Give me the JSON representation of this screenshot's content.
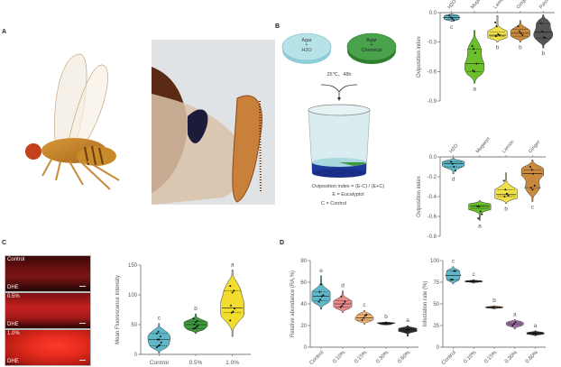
{
  "panels": {
    "a": {
      "label": "A"
    },
    "b": {
      "label": "B"
    },
    "c": {
      "label": "C"
    },
    "d": {
      "label": "D"
    }
  },
  "schematic": {
    "dish_left_line1": "Agar",
    "dish_left_line2": "+",
    "dish_left_line3": "H2O",
    "dish_right_line1": "Agar",
    "dish_right_line2": "+",
    "dish_right_line3": "Chemical",
    "condition": "25℃、48h",
    "formula": "Oviposition index = (E-C) / (E+C)",
    "legend_e": "E =  Eucalyptol",
    "legend_c": "C = Control",
    "colors": {
      "h2o_dish": "#a8dde3",
      "chem_dish": "#3f9a3f",
      "cup_base": "#1f3a9a"
    }
  },
  "fluorescence": {
    "images": [
      {
        "label": "Control",
        "stain": "DHE"
      },
      {
        "label": "0.5%",
        "stain": "DHE"
      },
      {
        "label": "1.0%",
        "stain": "DHE"
      }
    ]
  },
  "chart_data": [
    {
      "id": "b1",
      "type": "violin",
      "ylabel": "Oviposition index",
      "ylim": [
        -0.9,
        0.0
      ],
      "yticks": [
        0.0,
        -0.3,
        -0.6,
        -0.9
      ],
      "ytick_labels": [
        "0.0",
        "-0.3",
        "-0.6",
        "-0.9"
      ],
      "xaxis_position": "top",
      "categories": [
        "H2O",
        "Mugwort",
        "Lemon",
        "Ginger",
        "Patchouli"
      ],
      "colors": [
        "#5fb8c9",
        "#6bbf2a",
        "#f0e04a",
        "#c98a3e",
        "#555555"
      ],
      "medians": [
        -0.05,
        -0.52,
        -0.23,
        -0.21,
        -0.2
      ],
      "quartiles": [
        [
          -0.07,
          -0.03
        ],
        [
          -0.6,
          -0.37
        ],
        [
          -0.24,
          -0.2
        ],
        [
          -0.24,
          -0.17
        ],
        [
          -0.26,
          -0.11
        ]
      ],
      "ranges": [
        [
          -0.09,
          -0.01
        ],
        [
          -0.72,
          -0.18
        ],
        [
          -0.3,
          -0.03
        ],
        [
          -0.3,
          -0.08
        ],
        [
          -0.36,
          -0.02
        ]
      ],
      "points": [
        [
          -0.03,
          -0.05,
          -0.06,
          -0.08
        ],
        [
          -0.34,
          -0.37,
          -0.41,
          -0.52,
          -0.59,
          -0.6
        ],
        [
          -0.1,
          -0.14,
          -0.22,
          -0.23,
          -0.24
        ],
        [
          -0.14,
          -0.19,
          -0.21,
          -0.23
        ],
        [
          -0.11,
          -0.19,
          -0.25,
          -0.26
        ]
      ],
      "significance": [
        "c",
        "a",
        "b",
        "b",
        "b"
      ]
    },
    {
      "id": "b2",
      "type": "violin",
      "ylabel": "Oviposition index",
      "ylim": [
        -0.8,
        0.0
      ],
      "yticks": [
        0.0,
        -0.2,
        -0.4,
        -0.6,
        -0.8
      ],
      "ytick_labels": [
        "0.0",
        "-0.2",
        "-0.4",
        "-0.6",
        "-0.8"
      ],
      "xaxis_position": "top",
      "categories": [
        "H2O",
        "Mugwort",
        "Lemon",
        "Ginger"
      ],
      "colors": [
        "#5fb8c9",
        "#6bbf2a",
        "#f0e04a",
        "#c98a3e"
      ],
      "medians": [
        -0.07,
        -0.5,
        -0.38,
        -0.17
      ],
      "quartiles": [
        [
          -0.1,
          -0.05
        ],
        [
          -0.52,
          -0.49
        ],
        [
          -0.4,
          -0.33
        ],
        [
          -0.31,
          -0.13
        ]
      ],
      "ranges": [
        [
          -0.17,
          -0.01
        ],
        [
          -0.64,
          -0.44
        ],
        [
          -0.47,
          -0.16
        ],
        [
          -0.45,
          -0.03
        ]
      ],
      "points": [
        [
          -0.05,
          -0.07,
          -0.1,
          -0.14
        ],
        [
          -0.5,
          -0.5,
          -0.55,
          -0.58,
          -0.62
        ],
        [
          -0.24,
          -0.33,
          -0.37,
          -0.39,
          -0.4
        ],
        [
          -0.1,
          -0.13,
          -0.17,
          -0.29,
          -0.31,
          -0.33
        ]
      ],
      "significance": [
        "d",
        "a",
        "b",
        "c"
      ]
    },
    {
      "id": "c",
      "type": "violin",
      "ylabel": "Mean Fluorescence Intensity",
      "ylim": [
        0,
        150
      ],
      "yticks": [
        0,
        50,
        100,
        150
      ],
      "ytick_labels": [
        "0",
        "50",
        "100",
        "150"
      ],
      "xaxis_position": "bottom",
      "categories": [
        "Control",
        "0.5%",
        "1.0%"
      ],
      "colors": [
        "#5fb8c9",
        "#3c9a3c",
        "#f2dc2e"
      ],
      "medians": [
        25,
        50,
        78
      ],
      "quartiles": [
        [
          14,
          35
        ],
        [
          43,
          55
        ],
        [
          70,
          107
        ]
      ],
      "ranges": [
        [
          2,
          52
        ],
        [
          35,
          68
        ],
        [
          30,
          142
        ]
      ],
      "points": [
        [
          12,
          14,
          16,
          20,
          25,
          25,
          30,
          35,
          38
        ],
        [
          43,
          44,
          46,
          48,
          50,
          54,
          56,
          60
        ],
        [
          57,
          70,
          72,
          77,
          82,
          104,
          107,
          115
        ]
      ],
      "significance": [
        "c",
        "b",
        "a"
      ]
    },
    {
      "id": "d1",
      "type": "violin",
      "ylabel": "Relative abundance  (RA,%)",
      "ylim": [
        0,
        80
      ],
      "yticks": [
        0,
        20,
        40,
        60,
        80
      ],
      "ytick_labels": [
        "0",
        "20",
        "40",
        "60",
        "80"
      ],
      "xaxis_position": "bottom",
      "categories": [
        "Control",
        "0.10%",
        "0.15%",
        "0.30%",
        "0.60%"
      ],
      "colors": [
        "#5fb8c9",
        "#e88a8a",
        "#f5b773",
        "#333333",
        "#333333"
      ],
      "medians": [
        47,
        40,
        27,
        22,
        16
      ],
      "quartiles": [
        [
          43,
          51
        ],
        [
          37,
          43
        ],
        [
          25,
          30
        ],
        [
          21,
          22.5
        ],
        [
          15,
          17
        ]
      ],
      "ranges": [
        [
          35,
          66
        ],
        [
          32,
          52
        ],
        [
          21,
          34
        ],
        [
          20.5,
          23.5
        ],
        [
          10,
          20
        ]
      ],
      "points": [
        [
          42,
          44,
          47,
          48,
          51,
          58
        ],
        [
          37,
          38,
          40,
          42,
          47
        ],
        [
          25,
          27,
          29,
          30
        ],
        [
          21.5,
          22,
          22
        ],
        [
          14,
          16,
          17
        ]
      ],
      "significance": [
        "e",
        "d",
        "c",
        "b",
        "a"
      ]
    },
    {
      "id": "d2",
      "type": "violin",
      "ylabel": "Infestation rate (%)",
      "ylim": [
        0,
        100
      ],
      "yticks": [
        0,
        25,
        50,
        75,
        100
      ],
      "ytick_labels": [
        "0",
        "25",
        "50",
        "75",
        "100"
      ],
      "xaxis_position": "bottom",
      "categories": [
        "Control",
        "0.10%",
        "0.15%",
        "0.30%",
        "0.60%"
      ],
      "colors": [
        "#5fb8c9",
        "#333333",
        "#a0683a",
        "#b37ab8",
        "#333333"
      ],
      "medians": [
        83,
        76,
        46,
        27,
        16
      ],
      "quartiles": [
        [
          78,
          88
        ],
        [
          75.5,
          76.5
        ],
        [
          45.5,
          46.5
        ],
        [
          25,
          29
        ],
        [
          15,
          17
        ]
      ],
      "ranges": [
        [
          73,
          93
        ],
        [
          74,
          78
        ],
        [
          44,
          48
        ],
        [
          21,
          32
        ],
        [
          13,
          19
        ]
      ],
      "points": [
        [
          78,
          78,
          88,
          88
        ],
        [
          76,
          76
        ],
        [
          46,
          46
        ],
        [
          25,
          27,
          29
        ],
        [
          16,
          16
        ]
      ],
      "significance": [
        "c",
        "c",
        "b",
        "a",
        "a"
      ]
    }
  ]
}
